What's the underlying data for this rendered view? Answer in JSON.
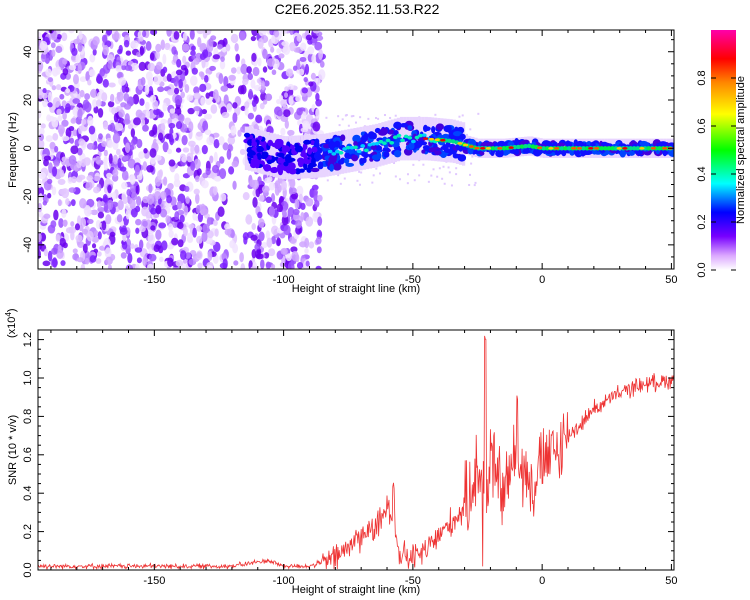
{
  "title": "C2E6.2025.352.11.53.R22",
  "chart_data": [
    {
      "type": "heatmap",
      "xlabel": "Height of straight line (km)",
      "ylabel": "Frequency (Hz)",
      "xlim": [
        -195,
        51
      ],
      "ylim": [
        -50,
        49
      ],
      "xticks": [
        -150,
        -100,
        -50,
        0,
        50
      ],
      "yticks": [
        -40,
        -20,
        0,
        20,
        40
      ],
      "colorbar": {
        "label": "Normalized spectral amplitude",
        "range": [
          0.0,
          1.0
        ],
        "ticks": [
          0.0,
          0.2,
          0.4,
          0.6,
          0.8
        ],
        "colors": [
          "#ffffff",
          "#7700ff",
          "#0000ff",
          "#00ffff",
          "#00ff00",
          "#ffff00",
          "#ff8800",
          "#ff0000",
          "#ff00aa"
        ]
      },
      "ridge": {
        "x": [
          -115,
          -100,
          -85,
          -75,
          -65,
          -55,
          -45,
          -35,
          -25,
          -15,
          -5,
          0,
          10,
          20,
          30,
          40,
          50
        ],
        "y": [
          0,
          -4,
          -3,
          -1,
          1,
          4,
          4,
          3,
          0,
          0,
          1,
          0,
          0,
          0,
          0,
          0,
          0
        ]
      }
    },
    {
      "type": "line",
      "xlabel": "Height of straight line (km)",
      "ylabel": "SNR (10 * v/v)",
      "yscale_label": "(x10",
      "yscale_exp": "4",
      "yscale_close": ")",
      "xlim": [
        -195,
        51
      ],
      "ylim": [
        0.0,
        1.25
      ],
      "xticks": [
        -150,
        -100,
        -50,
        0,
        50
      ],
      "yticks": [
        0.0,
        0.2,
        0.4,
        0.6,
        0.8,
        1.0,
        1.2
      ],
      "ytick_labels": [
        "0.0",
        "0.2",
        "0.4",
        "0.6",
        "0.8",
        "1.0",
        "1.2"
      ],
      "series": [
        {
          "name": "SNR",
          "color": "#ee3333",
          "x": [
            -195,
            -150,
            -120,
            -106,
            -100,
            -90,
            -80,
            -75,
            -70,
            -65,
            -62,
            -60,
            -58,
            -55,
            -50,
            -45,
            -40,
            -35,
            -30,
            -27,
            -25,
            -22,
            -20,
            -18,
            -15,
            -10,
            -5,
            0,
            5,
            10,
            15,
            20,
            25,
            30,
            35,
            40,
            45,
            50
          ],
          "values": [
            0.02,
            0.02,
            0.02,
            0.05,
            0.02,
            0.02,
            0.06,
            0.12,
            0.18,
            0.22,
            0.25,
            0.35,
            0.3,
            0.08,
            0.06,
            0.1,
            0.18,
            0.25,
            0.32,
            0.45,
            0.55,
            0.3,
            0.6,
            0.5,
            0.4,
            0.6,
            0.45,
            0.55,
            0.6,
            0.7,
            0.76,
            0.84,
            0.88,
            0.92,
            0.95,
            0.97,
            0.98,
            0.99
          ]
        }
      ]
    }
  ]
}
